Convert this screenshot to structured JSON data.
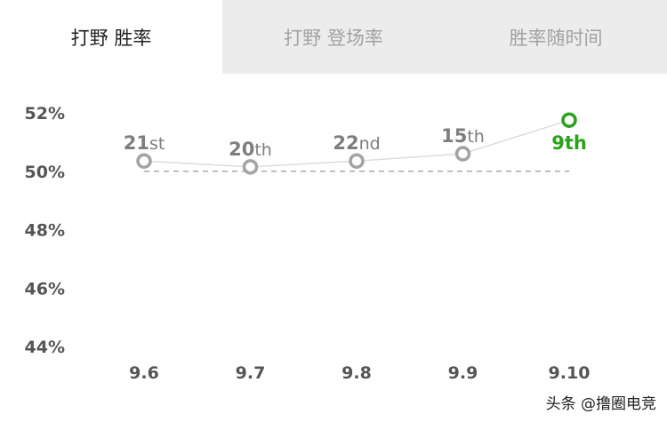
{
  "tabs": [
    {
      "label": "打野 胜率",
      "active": true
    },
    {
      "label": "打野 登场率",
      "active": false
    },
    {
      "label": "胜率随时间",
      "active": false
    }
  ],
  "watermark": "头条 @撸圈电竞",
  "colors": {
    "point": "#a3a3a3",
    "line": "#dcdcdc",
    "reference": "#9a9a9a",
    "highlight": "#2aa21b",
    "rank_text": "#7e7e7e"
  },
  "chart_data": {
    "type": "line",
    "x": [
      "9.6",
      "9.7",
      "9.8",
      "9.9",
      "9.10"
    ],
    "y_ticks": [
      "52%",
      "50%",
      "48%",
      "46%",
      "44%"
    ],
    "ylim": [
      44,
      52
    ],
    "reference_line": 50,
    "series": [
      {
        "values": [
          50.35,
          50.15,
          50.35,
          50.6,
          51.75
        ],
        "rank_labels": [
          {
            "num": "21",
            "suffix": "st"
          },
          {
            "num": "20",
            "suffix": "th"
          },
          {
            "num": "22",
            "suffix": "nd"
          },
          {
            "num": "15",
            "suffix": "th"
          },
          {
            "num": "9",
            "suffix": "th"
          }
        ],
        "highlight_index": 4
      }
    ]
  }
}
